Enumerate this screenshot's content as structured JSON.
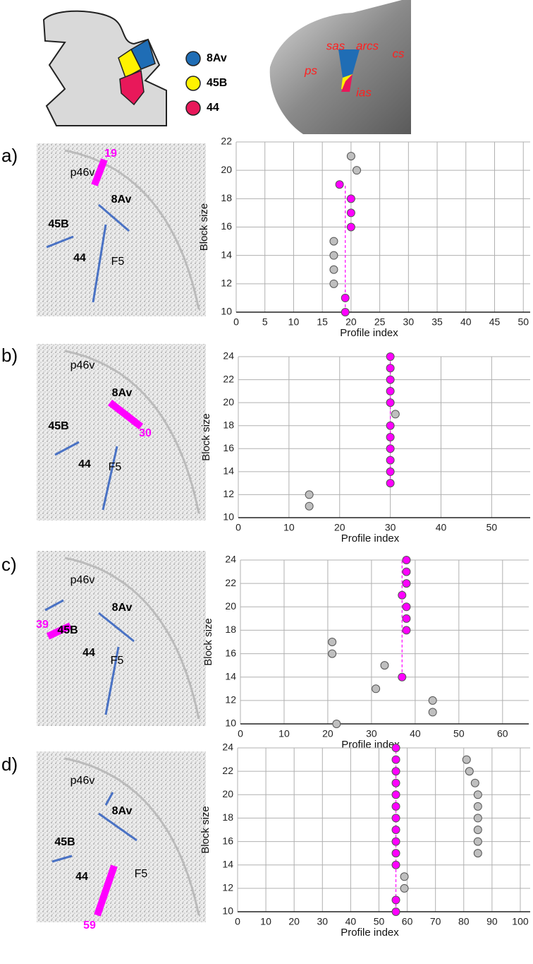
{
  "legend": [
    {
      "label": "8Av",
      "color": "#1f6db5"
    },
    {
      "label": "45B",
      "color": "#fff200"
    },
    {
      "label": "44",
      "color": "#e8185a"
    }
  ],
  "brain_labels": [
    "sas",
    "arcs",
    "cs",
    "ps",
    "ias"
  ],
  "panels": [
    {
      "letter": "a)",
      "areas": [
        "p46v",
        "8Av",
        "45B",
        "44",
        "F5"
      ]
    },
    {
      "letter": "b)",
      "areas": [
        "p46v",
        "8Av",
        "45B",
        "44",
        "F5"
      ]
    },
    {
      "letter": "c)",
      "areas": [
        "p46v",
        "8Av",
        "45B",
        "44",
        "F5"
      ]
    },
    {
      "letter": "d)",
      "areas": [
        "p46v",
        "8Av",
        "45B",
        "44",
        "F5"
      ]
    }
  ],
  "chart_data": [
    {
      "type": "scatter",
      "x_label": "Profile index",
      "y_label": "Block size",
      "selected_profile": 19,
      "xlim": [
        0,
        51.2
      ],
      "xticks": [
        0,
        5,
        10,
        15,
        20,
        25,
        30,
        35,
        40,
        45,
        50
      ],
      "ylim": [
        10,
        22
      ],
      "yticks": [
        10,
        12,
        14,
        16,
        18,
        20,
        22
      ],
      "grid": true,
      "series": [
        {
          "color": "#bfbfbf",
          "x": [
            20,
            21,
            17,
            17,
            17,
            17
          ],
          "values": [
            21,
            20,
            15,
            14,
            13,
            12
          ]
        },
        {
          "color": "#ff00ff",
          "x": [
            18,
            20,
            20,
            20,
            19,
            19
          ],
          "values": [
            19,
            18,
            17,
            16,
            11,
            10
          ]
        }
      ]
    },
    {
      "type": "scatter",
      "x_label": "Profile index",
      "y_label": "Block size",
      "selected_profile": 30,
      "xlim": [
        0,
        57.6
      ],
      "xticks": [
        0,
        10,
        20,
        30,
        40,
        50
      ],
      "ylim": [
        10,
        24
      ],
      "yticks": [
        10,
        12,
        14,
        16,
        18,
        20,
        22,
        24
      ],
      "grid": true,
      "series": [
        {
          "color": "#bfbfbf",
          "x": [
            31,
            14,
            14
          ],
          "values": [
            19,
            12,
            11
          ]
        },
        {
          "color": "#ff00ff",
          "x": [
            30,
            30,
            30,
            30,
            30,
            30,
            30,
            30,
            30,
            30,
            30
          ],
          "values": [
            24,
            23,
            22,
            21,
            20,
            18,
            17,
            16,
            15,
            14,
            13
          ]
        }
      ]
    },
    {
      "type": "scatter",
      "x_label": "Profile index",
      "y_label": "Block size",
      "selected_profile": 39,
      "xlim": [
        0,
        66
      ],
      "xticks": [
        0,
        10,
        20,
        30,
        40,
        50,
        60
      ],
      "ylim": [
        10,
        24
      ],
      "yticks": [
        10,
        12,
        14,
        16,
        18,
        20,
        22,
        24
      ],
      "grid": true,
      "series": [
        {
          "color": "#bfbfbf",
          "x": [
            21,
            21,
            33,
            31,
            44,
            44,
            22
          ],
          "values": [
            17,
            16,
            15,
            13,
            12,
            11,
            10
          ]
        },
        {
          "color": "#ff00ff",
          "x": [
            38,
            38,
            38,
            37,
            38,
            38,
            38,
            37
          ],
          "values": [
            24,
            23,
            22,
            21,
            20,
            19,
            18,
            14
          ]
        }
      ]
    },
    {
      "type": "scatter",
      "x_label": "Profile index",
      "y_label": "Block size",
      "selected_profile": 59,
      "xlim": [
        0,
        103.5
      ],
      "xticks": [
        0,
        10,
        20,
        30,
        40,
        50,
        60,
        70,
        80,
        90,
        100
      ],
      "ylim": [
        10,
        24
      ],
      "yticks": [
        10,
        12,
        14,
        16,
        18,
        20,
        22,
        24
      ],
      "grid": true,
      "series": [
        {
          "color": "#bfbfbf",
          "x": [
            59,
            59,
            81,
            82,
            84,
            85,
            85,
            85,
            85,
            85,
            85
          ],
          "values": [
            13,
            12,
            23,
            22,
            21,
            20,
            19,
            18,
            17,
            16,
            15
          ]
        },
        {
          "color": "#ff00ff",
          "x": [
            56,
            56,
            56,
            56,
            56,
            56,
            56,
            56,
            56,
            56,
            56,
            56,
            56
          ],
          "values": [
            24,
            23,
            22,
            21,
            20,
            19,
            18,
            17,
            16,
            15,
            14,
            11,
            10
          ]
        }
      ]
    }
  ]
}
